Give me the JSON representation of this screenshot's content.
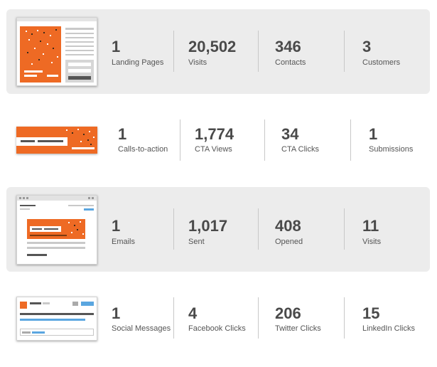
{
  "colors": {
    "accent_orange": "#ee6a24",
    "row_shade": "#ececec",
    "link_blue": "#5aa6e0"
  },
  "rows": [
    {
      "thumbnail": "landing-page-thumbnail",
      "stats": [
        {
          "value": "1",
          "label": "Landing Pages"
        },
        {
          "value": "20,502",
          "label": "Visits"
        },
        {
          "value": "346",
          "label": "Contacts"
        },
        {
          "value": "3",
          "label": "Customers"
        }
      ]
    },
    {
      "thumbnail": "cta-thumbnail",
      "stats": [
        {
          "value": "1",
          "label": "Calls-to-action"
        },
        {
          "value": "1,774",
          "label": "CTA Views"
        },
        {
          "value": "34",
          "label": "CTA Clicks"
        },
        {
          "value": "1",
          "label": "Submissions"
        }
      ]
    },
    {
      "thumbnail": "email-thumbnail",
      "stats": [
        {
          "value": "1",
          "label": "Emails"
        },
        {
          "value": "1,017",
          "label": "Sent"
        },
        {
          "value": "408",
          "label": "Opened"
        },
        {
          "value": "11",
          "label": "Visits"
        }
      ]
    },
    {
      "thumbnail": "social-thumbnail",
      "stats": [
        {
          "value": "1",
          "label": "Social Messages"
        },
        {
          "value": "4",
          "label": "Facebook Clicks"
        },
        {
          "value": "206",
          "label": "Twitter Clicks"
        },
        {
          "value": "15",
          "label": "LinkedIn Clicks"
        }
      ]
    }
  ]
}
